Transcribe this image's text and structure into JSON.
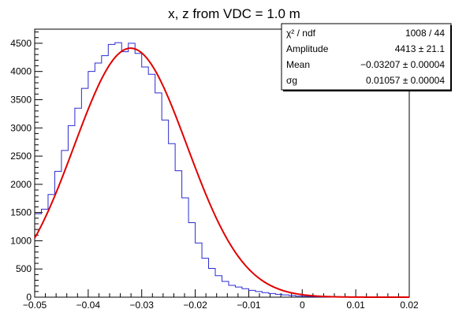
{
  "chart_data": {
    "type": "line",
    "title": "x, z from VDC = 1.0 m",
    "xlabel": "",
    "ylabel": "",
    "xlim": [
      -0.05,
      0.02
    ],
    "ylim": [
      0,
      4750
    ],
    "x_ticks": [
      -0.05,
      -0.04,
      -0.03,
      -0.02,
      -0.01,
      0,
      0.01,
      0.02
    ],
    "x_tick_labels": [
      "−0.05",
      "−0.04",
      "−0.03",
      "−0.02",
      "−0.01",
      "0",
      "0.01",
      "0.02"
    ],
    "y_ticks": [
      0,
      500,
      1000,
      1500,
      2000,
      2500,
      3000,
      3500,
      4000,
      4500
    ],
    "y_tick_labels": [
      "0",
      "500",
      "1000",
      "1500",
      "2000",
      "2500",
      "3000",
      "3500",
      "4000",
      "4500"
    ],
    "grid": false,
    "series": [
      {
        "kind": "histogram",
        "color": "#2b2bd1",
        "bin_width": 0.00125,
        "bin_edges_start": -0.05,
        "values": [
          1480,
          1560,
          1820,
          2230,
          2600,
          3040,
          3350,
          3700,
          4000,
          4150,
          4280,
          4480,
          4510,
          4350,
          4500,
          4320,
          4080,
          3950,
          3620,
          3140,
          2720,
          2240,
          1760,
          1320,
          960,
          690,
          510,
          380,
          280,
          210,
          180,
          150,
          120,
          100,
          80,
          65,
          50,
          40,
          30,
          20,
          15,
          10,
          5,
          3,
          1,
          0,
          0,
          0,
          0,
          0,
          0,
          0,
          0,
          0,
          0,
          0
        ]
      },
      {
        "kind": "fit",
        "color": "#e00000",
        "model": "gaussian",
        "amplitude": 4413,
        "mean": -0.03207,
        "sigma": 0.01057,
        "x_range": [
          -0.05,
          0.02
        ]
      }
    ],
    "legend_position": "top-right",
    "stats_box": {
      "rows": [
        {
          "label": "χ² / ndf",
          "value": "1008 / 44"
        },
        {
          "label": "Amplitude",
          "value": "4413 ± 21.1"
        },
        {
          "label": "Mean",
          "value": "−0.03207 ± 0.00004"
        },
        {
          "label": "σg",
          "value": "0.01057 ± 0.00004"
        }
      ]
    }
  }
}
